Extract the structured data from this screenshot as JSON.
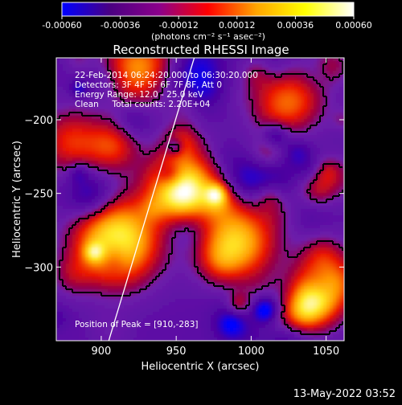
{
  "chart_data": {
    "type": "heatmap",
    "title": "Reconstructed RHESSI Image",
    "xlabel": "Heliocentric X (arcsec)",
    "ylabel": "Heliocentric Y (arcsec)",
    "xlim": [
      870,
      1062
    ],
    "ylim": [
      -350,
      -158
    ],
    "x_ticks": [
      900,
      950,
      1000,
      1050
    ],
    "y_ticks": [
      -200,
      -250,
      -300
    ],
    "colorbar": {
      "range": [
        -0.0006,
        0.0006
      ],
      "ticks": [
        "-0.00060",
        "-0.00036",
        "-0.00012",
        "0.00012",
        "0.00036",
        "0.00060"
      ],
      "units_label": "(photons cm⁻² s⁻¹ asec⁻²)",
      "colors": [
        "#0000ff",
        "#4b0082",
        "#8b008b",
        "#ff0000",
        "#ffa500",
        "#ffff00",
        "#ffffff"
      ]
    },
    "annotations": {
      "time_range": "22-Feb-2014 06:24:20.000 to 06:30:20.000",
      "detectors": "Detectors: 3F 4F 5F 6F 7F 8F, Att 0",
      "energy_range": "Energy Range: 12.0 - 25.0 keV",
      "method_counts": "Clean     Total counts: 2.20E+04",
      "peak": "Position of Peak = [910,-283]"
    },
    "peak_position": [
      910,
      -283
    ],
    "limb_line": {
      "x": [
        905,
        962
      ],
      "y": [
        -350,
        -158
      ]
    },
    "sources": [
      {
        "x": 910,
        "y": -283,
        "intensity": 1.0
      },
      {
        "x": 955,
        "y": -245,
        "intensity": 0.75
      },
      {
        "x": 990,
        "y": -283,
        "intensity": 0.8
      },
      {
        "x": 925,
        "y": -165,
        "intensity": 0.65
      },
      {
        "x": 1025,
        "y": -190,
        "intensity": 0.6
      },
      {
        "x": 1050,
        "y": -310,
        "intensity": 0.55
      },
      {
        "x": 880,
        "y": -215,
        "intensity": 0.45
      }
    ]
  },
  "footer": {
    "timestamp": "13-May-2022 03:52"
  },
  "colors": {
    "background": "#000000",
    "foreground": "#ffffff"
  }
}
